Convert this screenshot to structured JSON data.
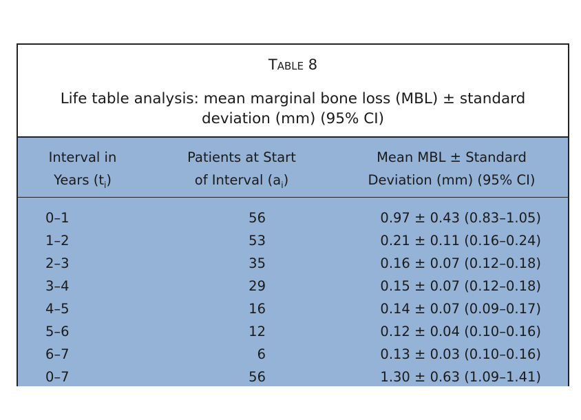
{
  "table": {
    "label": "Table 8",
    "title": "Life table analysis: mean marginal bone loss (MBL) ± standard deviation (mm) (95% CI)",
    "headers": {
      "col1_line1": "Interval in",
      "col1_line2": "Years (t",
      "col1_sub": "i",
      "col1_end": ")",
      "col2_line1": "Patients at Start",
      "col2_line2": "of Interval (a",
      "col2_sub": "i",
      "col2_end": ")",
      "col3_line1": "Mean MBL ± Standard",
      "col3_line2": "Deviation (mm) (95% CI)"
    },
    "rows": [
      {
        "interval": "0–1",
        "patients": "56",
        "mbl": "0.97 ± 0.43 (0.83–1.05)"
      },
      {
        "interval": "1–2",
        "patients": "53",
        "mbl": "0.21 ± 0.11 (0.16–0.24)"
      },
      {
        "interval": "2–3",
        "patients": "35",
        "mbl": "0.16 ± 0.07 (0.12–0.18)"
      },
      {
        "interval": "3–4",
        "patients": "29",
        "mbl": "0.15 ± 0.07 (0.12–0.18)"
      },
      {
        "interval": "4–5",
        "patients": "16",
        "mbl": "0.14 ± 0.07 (0.09–0.17)"
      },
      {
        "interval": "5–6",
        "patients": "12",
        "mbl": "0.12 ± 0.04 (0.10–0.16)"
      },
      {
        "interval": "6–7",
        "patients": "6",
        "mbl": "0.13 ± 0.03 (0.10–0.16)"
      },
      {
        "interval": "0–7",
        "patients": "56",
        "mbl": "1.30 ± 0.63 (1.09–1.41)"
      }
    ]
  }
}
